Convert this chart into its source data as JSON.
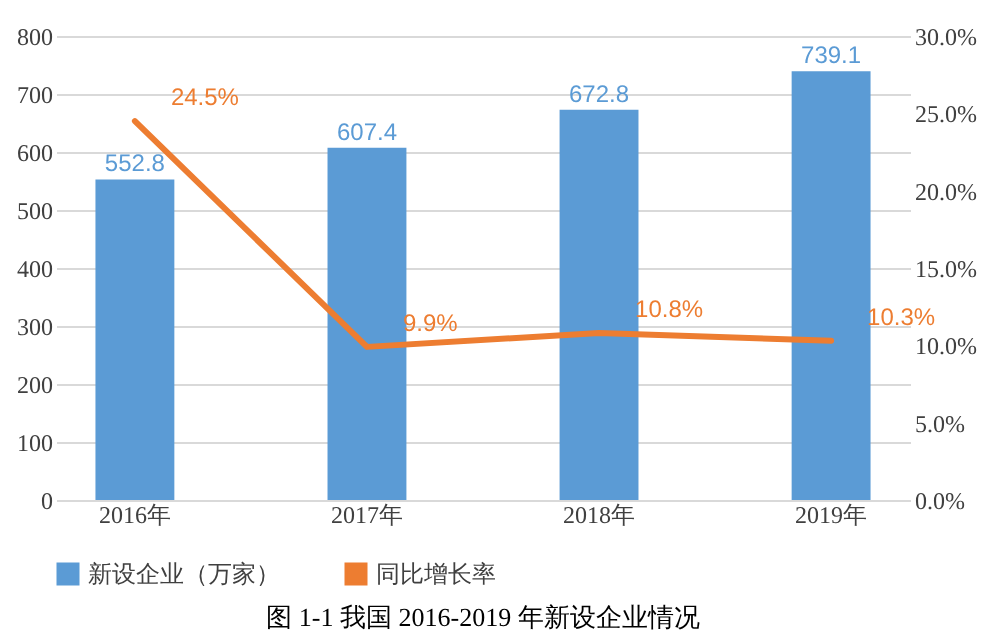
{
  "chart_data": {
    "type": "bar",
    "title": "图 1-1  我国 2016-2019 年新设企业情况",
    "categories": [
      "2016年",
      "2017年",
      "2018年",
      "2019年"
    ],
    "series": [
      {
        "name": "新设企业（万家）",
        "color": "#5b9bd5",
        "values": [
          552.8,
          607.4,
          672.8,
          739.1
        ],
        "value_labels": [
          "552.8",
          "607.4",
          "672.8",
          "739.1"
        ]
      },
      {
        "name": "同比增长率",
        "type": "line",
        "axis": "y2",
        "color": "#ed7d31",
        "values": [
          24.5,
          9.9,
          10.8,
          10.3
        ],
        "value_labels": [
          "24.5%",
          "9.9%",
          "10.8%",
          "10.3%"
        ]
      }
    ],
    "ylim": [
      0,
      800
    ],
    "yticks": [
      0,
      100,
      200,
      300,
      400,
      500,
      600,
      700,
      800
    ],
    "y2lim": [
      0,
      30
    ],
    "y2ticks": [
      {
        "value": 0,
        "label": "0.0%"
      },
      {
        "value": 5,
        "label": "5.0%"
      },
      {
        "value": 10,
        "label": "10.0%"
      },
      {
        "value": 15,
        "label": "15.0%"
      },
      {
        "value": 20,
        "label": "20.0%"
      },
      {
        "value": 25,
        "label": "25.0%"
      },
      {
        "value": 30,
        "label": "30.0%"
      }
    ],
    "grid": "y",
    "legend": "bottom",
    "marker": "none",
    "line_style": "solid"
  }
}
